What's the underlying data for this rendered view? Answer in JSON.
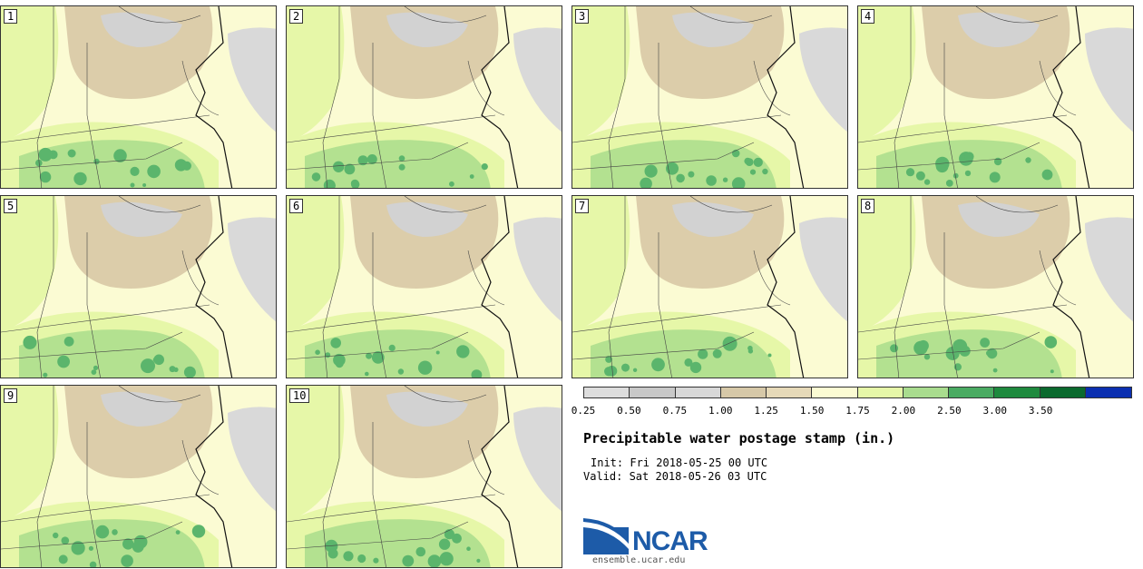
{
  "panels": [
    {
      "label": "1"
    },
    {
      "label": "2"
    },
    {
      "label": "3"
    },
    {
      "label": "4"
    },
    {
      "label": "5"
    },
    {
      "label": "6"
    },
    {
      "label": "7"
    },
    {
      "label": "8"
    },
    {
      "label": "9"
    },
    {
      "label": "10"
    }
  ],
  "colorbar": {
    "colors": [
      "#dddddd",
      "#c8c8c8",
      "#d8d8d8",
      "#d6c8a8",
      "#e6d9b8",
      "#fbfbd3",
      "#e6f7a8",
      "#a9dc8e",
      "#4aab62",
      "#1e8a3e",
      "#0b6a2e",
      "#0b2fb0"
    ],
    "ticks": [
      "0.25",
      "0.50",
      "0.75",
      "1.00",
      "1.25",
      "1.50",
      "1.75",
      "2.00",
      "2.50",
      "3.00",
      "3.50"
    ]
  },
  "title": "Precipitable water postage stamp (in.)",
  "init": "Init: Fri 2018-05-25 00 UTC",
  "valid": "Valid: Sat 2018-05-26 03 UTC",
  "logo": {
    "brand": "NCAR",
    "url": "ensemble.ucar.edu",
    "color": "#1d5ba8"
  }
}
